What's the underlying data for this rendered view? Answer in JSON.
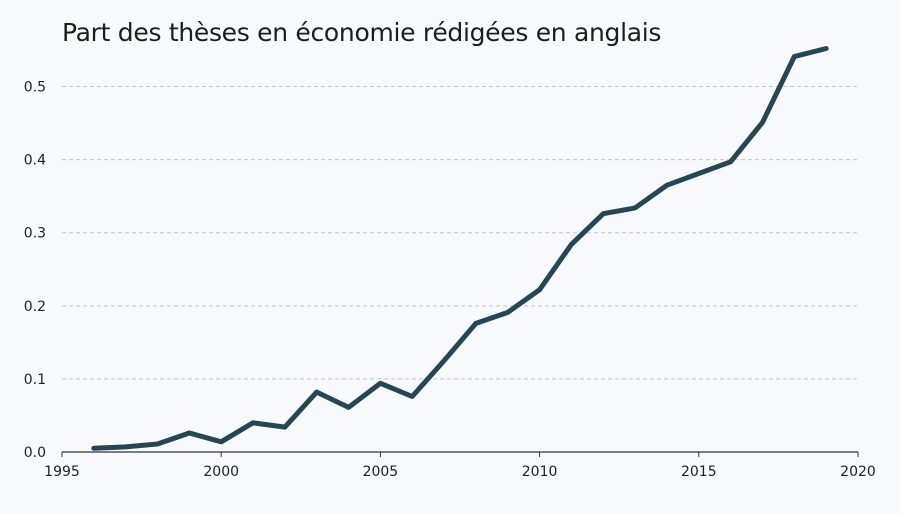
{
  "chart_data": {
    "type": "line",
    "title": "Part des thèses en économie rédigées en anglais",
    "xlabel": "",
    "ylabel": "",
    "xlim": [
      1995,
      2020
    ],
    "ylim": [
      0,
      0.55
    ],
    "x_ticks": [
      1995,
      2000,
      2005,
      2010,
      2015,
      2020
    ],
    "y_ticks": [
      0.0,
      0.1,
      0.2,
      0.3,
      0.4,
      0.5
    ],
    "y_tick_labels": [
      "0.0",
      "0.1",
      "0.2",
      "0.3",
      "0.4",
      "0.5"
    ],
    "grid": "horizontal-dashed",
    "legend": "none",
    "line_color": "#264653",
    "series": [
      {
        "x": [
          1996,
          1997,
          1998,
          1999,
          2000,
          2001,
          2002,
          2003,
          2004,
          2005,
          2006,
          2007,
          2008,
          2009,
          2010,
          2011,
          2012,
          2013,
          2014,
          2015,
          2016,
          2017,
          2018,
          2019
        ],
        "values": [
          0.005,
          0.007,
          0.011,
          0.026,
          0.014,
          0.04,
          0.034,
          0.082,
          0.061,
          0.094,
          0.076,
          0.125,
          0.176,
          0.191,
          0.222,
          0.284,
          0.326,
          0.334,
          0.365,
          0.381,
          0.397,
          0.451,
          0.541,
          0.552
        ]
      }
    ]
  }
}
